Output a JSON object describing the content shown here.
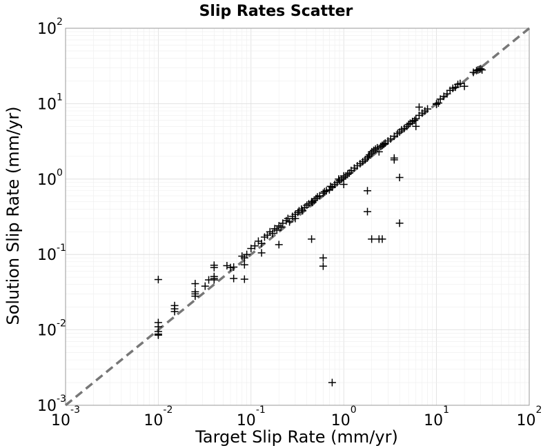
{
  "chart_data": {
    "type": "scatter",
    "title": "Slip Rates Scatter",
    "xlabel": "Target Slip Rate (mm/yr)",
    "ylabel": "Solution Slip Rate (mm/yr)",
    "xscale": "log",
    "yscale": "log",
    "xlim": [
      0.001,
      100
    ],
    "ylim": [
      0.001,
      100
    ],
    "grid": true,
    "marker": "+",
    "marker_color": "#000000",
    "reference_line": {
      "style": "dashed",
      "color": "#777777",
      "y_equals_x": true
    },
    "x_ticks": [
      {
        "base": "10",
        "exp": "-3"
      },
      {
        "base": "10",
        "exp": "-2"
      },
      {
        "base": "10",
        "exp": "-1"
      },
      {
        "base": "10",
        "exp": "0"
      },
      {
        "base": "10",
        "exp": "1"
      },
      {
        "base": "10",
        "exp": "2"
      }
    ],
    "y_ticks": [
      {
        "base": "10",
        "exp": "-3"
      },
      {
        "base": "10",
        "exp": "-2"
      },
      {
        "base": "10",
        "exp": "-1"
      },
      {
        "base": "10",
        "exp": "0"
      },
      {
        "base": "10",
        "exp": "1"
      },
      {
        "base": "10",
        "exp": "2"
      }
    ],
    "points": [
      [
        0.01,
        0.0465
      ],
      [
        0.01,
        0.0125
      ],
      [
        0.01,
        0.011
      ],
      [
        0.01,
        0.0095
      ],
      [
        0.01,
        0.0088
      ],
      [
        0.01,
        0.0085
      ],
      [
        0.015,
        0.021
      ],
      [
        0.015,
        0.019
      ],
      [
        0.015,
        0.0175
      ],
      [
        0.025,
        0.041
      ],
      [
        0.025,
        0.032
      ],
      [
        0.025,
        0.03
      ],
      [
        0.025,
        0.028
      ],
      [
        0.032,
        0.038
      ],
      [
        0.035,
        0.046
      ],
      [
        0.04,
        0.072
      ],
      [
        0.04,
        0.067
      ],
      [
        0.04,
        0.051
      ],
      [
        0.04,
        0.048
      ],
      [
        0.04,
        0.046
      ],
      [
        0.055,
        0.071
      ],
      [
        0.06,
        0.067
      ],
      [
        0.065,
        0.068
      ],
      [
        0.065,
        0.048
      ],
      [
        0.08,
        0.095
      ],
      [
        0.085,
        0.09
      ],
      [
        0.085,
        0.073
      ],
      [
        0.09,
        0.1
      ],
      [
        0.085,
        0.047
      ],
      [
        0.1,
        0.12
      ],
      [
        0.11,
        0.13
      ],
      [
        0.12,
        0.15
      ],
      [
        0.13,
        0.14
      ],
      [
        0.13,
        0.105
      ],
      [
        0.14,
        0.17
      ],
      [
        0.15,
        0.18
      ],
      [
        0.16,
        0.2
      ],
      [
        0.17,
        0.19
      ],
      [
        0.18,
        0.22
      ],
      [
        0.19,
        0.21
      ],
      [
        0.2,
        0.24
      ],
      [
        0.21,
        0.23
      ],
      [
        0.2,
        0.135
      ],
      [
        0.22,
        0.26
      ],
      [
        0.24,
        0.28
      ],
      [
        0.25,
        0.3
      ],
      [
        0.26,
        0.27
      ],
      [
        0.28,
        0.32
      ],
      [
        0.3,
        0.34
      ],
      [
        0.32,
        0.36
      ],
      [
        0.3,
        0.3
      ],
      [
        0.33,
        0.38
      ],
      [
        0.35,
        0.4
      ],
      [
        0.36,
        0.38
      ],
      [
        0.38,
        0.42
      ],
      [
        0.4,
        0.45
      ],
      [
        0.42,
        0.47
      ],
      [
        0.45,
        0.5
      ],
      [
        0.46,
        0.49
      ],
      [
        0.48,
        0.52
      ],
      [
        0.5,
        0.55
      ],
      [
        0.52,
        0.58
      ],
      [
        0.55,
        0.6
      ],
      [
        0.45,
        0.16
      ],
      [
        0.6,
        0.09
      ],
      [
        0.6,
        0.07
      ],
      [
        0.6,
        0.65
      ],
      [
        0.62,
        0.68
      ],
      [
        0.65,
        0.7
      ],
      [
        0.7,
        0.72
      ],
      [
        0.72,
        0.8
      ],
      [
        0.75,
        0.78
      ],
      [
        0.8,
        0.85
      ],
      [
        0.85,
        0.9
      ],
      [
        0.9,
        0.95
      ],
      [
        0.88,
        1.0
      ],
      [
        0.95,
        1.0
      ],
      [
        1.0,
        1.05
      ],
      [
        1.0,
        1.1
      ],
      [
        1.05,
        1.1
      ],
      [
        1.1,
        1.15
      ],
      [
        1.15,
        1.2
      ],
      [
        1.2,
        1.3
      ],
      [
        1.0,
        0.85
      ],
      [
        0.75,
        0.002
      ],
      [
        1.3,
        1.4
      ],
      [
        1.4,
        1.5
      ],
      [
        1.5,
        1.6
      ],
      [
        1.6,
        1.7
      ],
      [
        1.7,
        1.8
      ],
      [
        1.8,
        1.9
      ],
      [
        1.85,
        2.0
      ],
      [
        1.9,
        2.1
      ],
      [
        2.0,
        2.2
      ],
      [
        2.0,
        2.3
      ],
      [
        2.1,
        2.4
      ],
      [
        2.2,
        2.5
      ],
      [
        2.3,
        2.6
      ],
      [
        2.4,
        2.3
      ],
      [
        2.5,
        2.7
      ],
      [
        2.6,
        2.8
      ],
      [
        2.7,
        2.9
      ],
      [
        2.8,
        3.0
      ],
      [
        3.0,
        3.2
      ],
      [
        3.2,
        3.4
      ],
      [
        1.8,
        0.7
      ],
      [
        1.8,
        0.37
      ],
      [
        2.0,
        0.16
      ],
      [
        2.4,
        0.16
      ],
      [
        2.6,
        0.16
      ],
      [
        3.5,
        1.9
      ],
      [
        3.5,
        1.8
      ],
      [
        4.0,
        1.05
      ],
      [
        4.0,
        0.26
      ],
      [
        3.5,
        3.7
      ],
      [
        3.8,
        4.0
      ],
      [
        4.0,
        4.2
      ],
      [
        4.2,
        4.5
      ],
      [
        4.5,
        4.7
      ],
      [
        4.8,
        5.0
      ],
      [
        5.0,
        5.3
      ],
      [
        5.2,
        5.5
      ],
      [
        5.5,
        5.8
      ],
      [
        5.8,
        6.0
      ],
      [
        6.0,
        6.3
      ],
      [
        6.0,
        5.0
      ],
      [
        6.5,
        7.0
      ],
      [
        7.0,
        7.5
      ],
      [
        7.5,
        8.0
      ],
      [
        8.0,
        8.5
      ],
      [
        6.5,
        9.0
      ],
      [
        10.0,
        10.0
      ],
      [
        10.0,
        9.8
      ],
      [
        10.5,
        10.2
      ],
      [
        11.0,
        11.5
      ],
      [
        12.0,
        12.5
      ],
      [
        13.0,
        13.5
      ],
      [
        14.0,
        15.0
      ],
      [
        15.0,
        16.0
      ],
      [
        16.0,
        16.5
      ],
      [
        17.0,
        18.0
      ],
      [
        18.0,
        18.5
      ],
      [
        20.0,
        17.0
      ],
      [
        25.0,
        26.0
      ],
      [
        27.0,
        27.5
      ],
      [
        28.0,
        28.0
      ],
      [
        29.0,
        28.5
      ],
      [
        30.0,
        29.0
      ],
      [
        31.0,
        28.0
      ]
    ]
  }
}
